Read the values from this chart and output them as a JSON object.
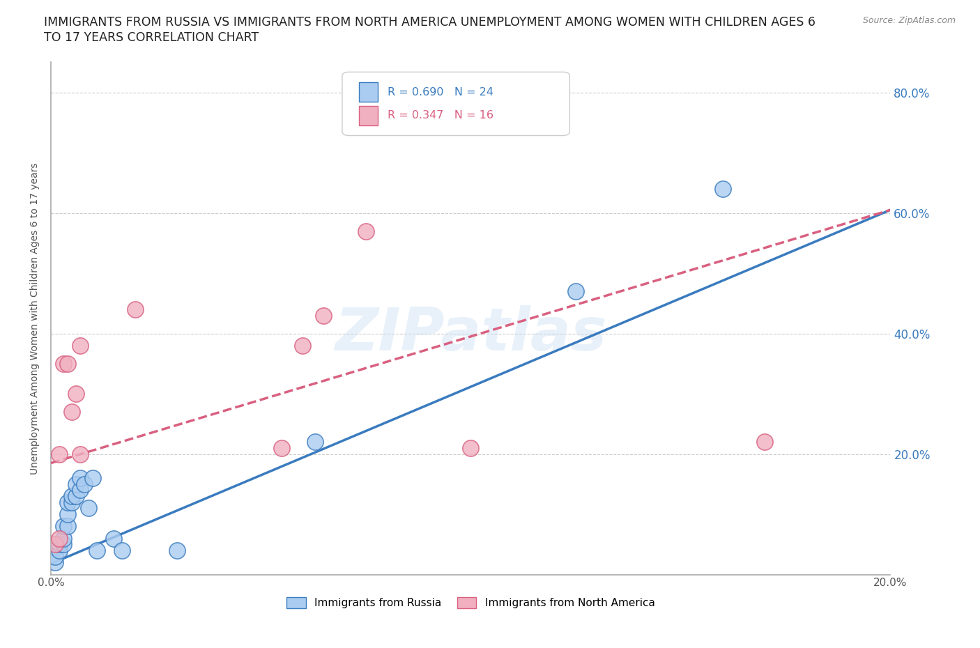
{
  "title_line1": "IMMIGRANTS FROM RUSSIA VS IMMIGRANTS FROM NORTH AMERICA UNEMPLOYMENT AMONG WOMEN WITH CHILDREN AGES 6",
  "title_line2": "TO 17 YEARS CORRELATION CHART",
  "source": "Source: ZipAtlas.com",
  "ylabel": "Unemployment Among Women with Children Ages 6 to 17 years",
  "xlim": [
    0.0,
    0.2
  ],
  "ylim": [
    0.0,
    0.85
  ],
  "yticks": [
    0.0,
    0.2,
    0.4,
    0.6,
    0.8
  ],
  "xticks": [
    0.0,
    0.04,
    0.08,
    0.12,
    0.16,
    0.2
  ],
  "color_russia": "#aaccf0",
  "color_north_america": "#f0b0c0",
  "color_line_russia": "#3a7bbf",
  "color_line_north_america": "#d96080",
  "label_russia": "Immigrants from Russia",
  "label_north_america": "Immigrants from North America",
  "russia_x": [
    0.001,
    0.001,
    0.002,
    0.002,
    0.003,
    0.003,
    0.003,
    0.004,
    0.004,
    0.004,
    0.005,
    0.005,
    0.006,
    0.006,
    0.007,
    0.007,
    0.008,
    0.009,
    0.01,
    0.011,
    0.015,
    0.017,
    0.03,
    0.063,
    0.125,
    0.16
  ],
  "russia_y": [
    0.02,
    0.03,
    0.04,
    0.05,
    0.05,
    0.06,
    0.08,
    0.08,
    0.1,
    0.12,
    0.12,
    0.13,
    0.13,
    0.15,
    0.14,
    0.16,
    0.15,
    0.11,
    0.16,
    0.04,
    0.06,
    0.04,
    0.04,
    0.22,
    0.47,
    0.64
  ],
  "na_x": [
    0.001,
    0.002,
    0.002,
    0.003,
    0.004,
    0.005,
    0.006,
    0.007,
    0.007,
    0.02,
    0.055,
    0.06,
    0.065,
    0.075,
    0.1,
    0.17
  ],
  "na_y": [
    0.05,
    0.06,
    0.2,
    0.35,
    0.35,
    0.27,
    0.3,
    0.38,
    0.2,
    0.44,
    0.21,
    0.38,
    0.43,
    0.57,
    0.21,
    0.22
  ],
  "russia_line_x0": 0.0,
  "russia_line_y0": 0.018,
  "russia_line_x1": 0.2,
  "russia_line_y1": 0.605,
  "na_line_x0": 0.0,
  "na_line_y0": 0.185,
  "na_line_x1": 0.2,
  "na_line_y1": 0.605,
  "background_color": "#ffffff",
  "grid_color": "#cccccc",
  "axis_color": "#aaaaaa",
  "title_fontsize": 12.5,
  "label_fontsize": 10,
  "tick_fontsize": 11,
  "source_fontsize": 9,
  "watermark_text": "ZIPatlas"
}
